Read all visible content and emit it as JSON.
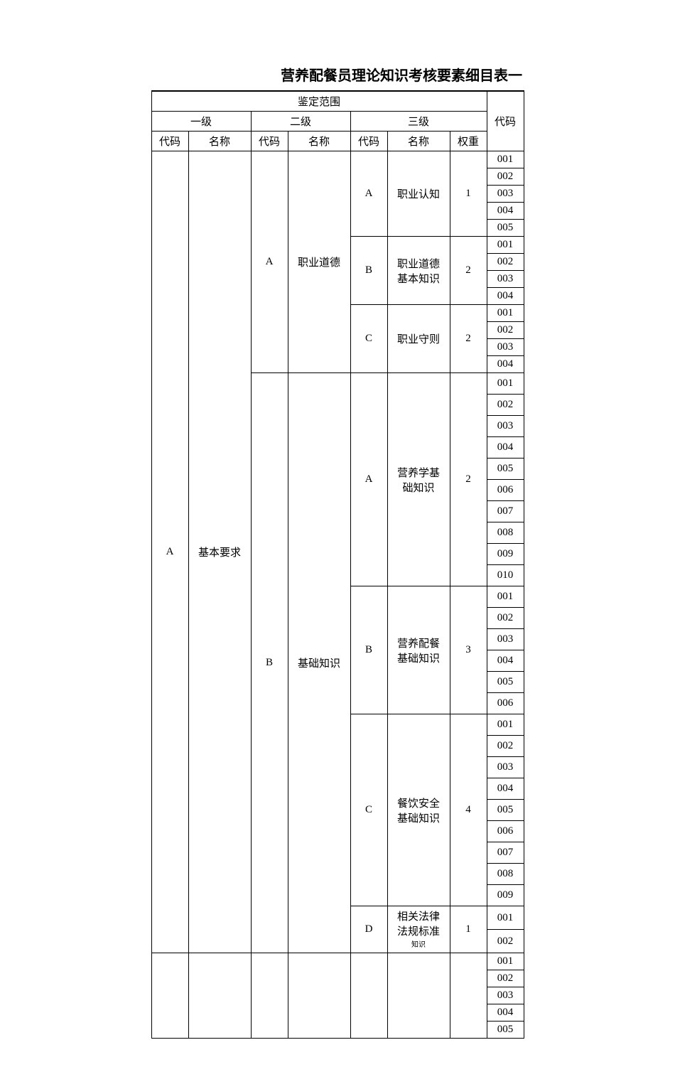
{
  "title": "营养配餐员理论知识考核要素细目表一",
  "columns": {
    "scope_header": "鉴定范围",
    "level1": "一级",
    "level2": "二级",
    "level3": "三级",
    "code": "代码",
    "name": "名称",
    "weight": "权重",
    "item_code": "代码"
  },
  "l1": {
    "code": "A",
    "name": "基本要求"
  },
  "l2": [
    {
      "code": "A",
      "name": "职业道德"
    },
    {
      "code": "B",
      "name": "基础知识"
    }
  ],
  "l3": [
    {
      "code": "A",
      "name": "职业认知",
      "weight": "1",
      "items": [
        "001",
        "002",
        "003",
        "004",
        "005"
      ]
    },
    {
      "code": "B",
      "name": "职业道德基本知识",
      "weight": "2",
      "items": [
        "001",
        "002",
        "003",
        "004"
      ]
    },
    {
      "code": "C",
      "name": "职业守则",
      "weight": "2",
      "items": [
        "001",
        "002",
        "003",
        "004"
      ]
    },
    {
      "code": "A",
      "name": "营养学基础知识",
      "weight": "2",
      "items": [
        "001",
        "002",
        "003",
        "004",
        "005",
        "006",
        "007",
        "008",
        "009",
        "010"
      ]
    },
    {
      "code": "B",
      "name": "营养配餐基础知识",
      "weight": "3",
      "items": [
        "001",
        "002",
        "003",
        "004",
        "005",
        "006"
      ]
    },
    {
      "code": "C",
      "name": "餐饮安全基础知识",
      "weight": "4",
      "items": [
        "001",
        "002",
        "003",
        "004",
        "005",
        "006",
        "007",
        "008",
        "009"
      ]
    },
    {
      "code": "D",
      "name": "相关法律法规标准",
      "weight": "1",
      "items": [
        "001",
        "002"
      ],
      "small": "知识"
    }
  ],
  "trailing_items": [
    "001",
    "002",
    "003",
    "004",
    "005"
  ],
  "colors": {
    "border": "#000000",
    "background": "#ffffff",
    "text": "#000000"
  },
  "font": {
    "family": "SimSun",
    "title_size_pt": 15,
    "body_size_pt": 11
  }
}
